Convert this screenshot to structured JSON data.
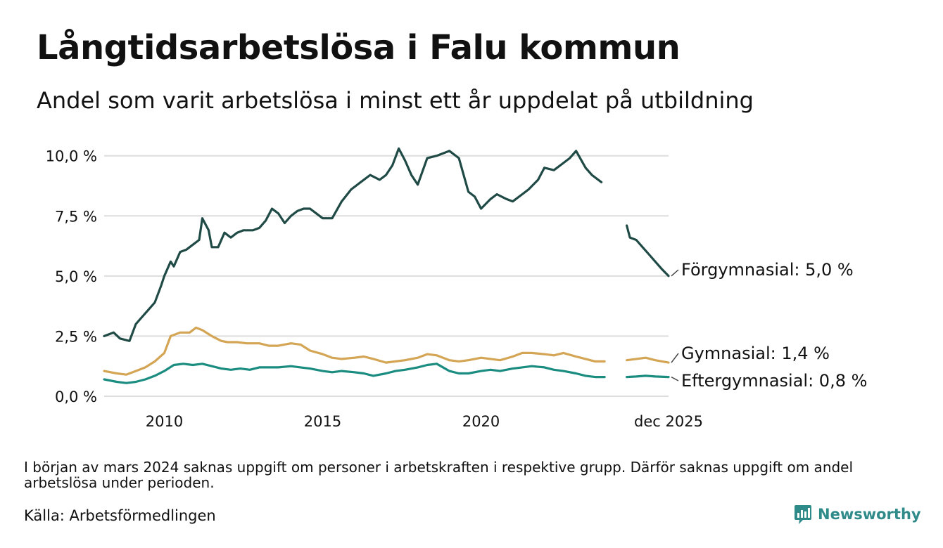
{
  "title": "Långtidsarbetslösa i Falu kommun",
  "subtitle": "Andel som varit arbetslösa i minst ett år uppdelat på utbildning",
  "note": "I början av mars 2024 saknas uppgift om personer i arbetskraften i respektive grupp. Därför saknas uppgift om andel arbetslösa under perioden.",
  "source": "Källa: Arbetsförmedlingen",
  "brand": "Newsworthy",
  "colors": {
    "forgymnasial": "#1f4a45",
    "gymnasial": "#d3a554",
    "eftergymnasial": "#1a8c80",
    "grid": "#dddddd",
    "brand": "#2f8a8a"
  },
  "chart_data": {
    "type": "line",
    "title": "Långtidsarbetslösa i Falu kommun",
    "subtitle": "Andel som varit arbetslösa i minst ett år uppdelat på utbildning",
    "xlabel": "",
    "ylabel": "",
    "xlim": [
      2008.1,
      2025.92
    ],
    "ylim": [
      0,
      10.4
    ],
    "y_ticks": [
      0,
      2.5,
      5,
      7.5,
      10
    ],
    "y_tick_labels": [
      "0,0 %",
      "2,5 %",
      "5,0 %",
      "7,5 %",
      "10,0 %"
    ],
    "x_ticks": [
      2010,
      2015,
      2020,
      2025.92
    ],
    "x_tick_labels": [
      "2010",
      "2015",
      "2020",
      "dec 2025"
    ],
    "grid": true,
    "gap": [
      2023.95,
      2024.55
    ],
    "series": [
      {
        "name": "Förgymnasial",
        "label": "Förgymnasial: 5,0 %",
        "color_key": "forgymnasial",
        "x": [
          2008.1,
          2008.4,
          2008.6,
          2008.9,
          2009.1,
          2009.3,
          2009.5,
          2009.7,
          2009.9,
          2010.0,
          2010.2,
          2010.3,
          2010.5,
          2010.7,
          2010.9,
          2011.1,
          2011.2,
          2011.4,
          2011.5,
          2011.7,
          2011.9,
          2012.1,
          2012.3,
          2012.5,
          2012.8,
          2013.0,
          2013.2,
          2013.4,
          2013.6,
          2013.8,
          2014.0,
          2014.2,
          2014.4,
          2014.6,
          2014.8,
          2015.0,
          2015.3,
          2015.6,
          2015.9,
          2016.2,
          2016.5,
          2016.8,
          2017.0,
          2017.2,
          2017.4,
          2017.6,
          2017.8,
          2018.0,
          2018.3,
          2018.6,
          2018.8,
          2019.0,
          2019.3,
          2019.6,
          2019.8,
          2020.0,
          2020.3,
          2020.5,
          2020.8,
          2021.0,
          2021.3,
          2021.5,
          2021.8,
          2022.0,
          2022.3,
          2022.5,
          2022.8,
          2023.0,
          2023.3,
          2023.5,
          2023.8,
          2024.6,
          2024.7,
          2024.9,
          2025.1,
          2025.3,
          2025.5,
          2025.7,
          2025.92
        ],
        "values": [
          2.5,
          2.65,
          2.4,
          2.3,
          3.0,
          3.3,
          3.6,
          3.9,
          4.6,
          5.0,
          5.6,
          5.4,
          6.0,
          6.1,
          6.3,
          6.5,
          7.4,
          6.9,
          6.2,
          6.2,
          6.8,
          6.6,
          6.8,
          6.9,
          6.9,
          7.0,
          7.3,
          7.8,
          7.6,
          7.2,
          7.5,
          7.7,
          7.8,
          7.8,
          7.6,
          7.4,
          7.4,
          8.1,
          8.6,
          8.9,
          9.2,
          9.0,
          9.2,
          9.6,
          10.3,
          9.8,
          9.2,
          8.8,
          9.9,
          10.0,
          10.1,
          10.2,
          9.9,
          8.5,
          8.3,
          7.8,
          8.2,
          8.4,
          8.2,
          8.1,
          8.4,
          8.6,
          9.0,
          9.5,
          9.4,
          9.6,
          9.9,
          10.2,
          9.5,
          9.2,
          8.9,
          7.1,
          6.6,
          6.5,
          6.2,
          5.9,
          5.6,
          5.3,
          5.0
        ]
      },
      {
        "name": "Gymnasial",
        "label": "Gymnasial: 1,4 %",
        "color_key": "gymnasial",
        "x": [
          2008.1,
          2008.5,
          2008.8,
          2009.1,
          2009.4,
          2009.7,
          2010.0,
          2010.2,
          2010.5,
          2010.8,
          2011.0,
          2011.2,
          2011.5,
          2011.8,
          2012.0,
          2012.3,
          2012.6,
          2013.0,
          2013.3,
          2013.6,
          2014.0,
          2014.3,
          2014.6,
          2015.0,
          2015.3,
          2015.6,
          2016.0,
          2016.3,
          2016.6,
          2017.0,
          2017.3,
          2017.6,
          2018.0,
          2018.3,
          2018.6,
          2019.0,
          2019.3,
          2019.6,
          2020.0,
          2020.3,
          2020.6,
          2021.0,
          2021.3,
          2021.6,
          2022.0,
          2022.3,
          2022.6,
          2023.0,
          2023.3,
          2023.6,
          2023.9,
          2024.6,
          2024.9,
          2025.2,
          2025.5,
          2025.92
        ],
        "values": [
          1.05,
          0.95,
          0.9,
          1.05,
          1.2,
          1.45,
          1.8,
          2.5,
          2.65,
          2.65,
          2.85,
          2.75,
          2.5,
          2.3,
          2.25,
          2.25,
          2.2,
          2.2,
          2.1,
          2.1,
          2.2,
          2.15,
          1.9,
          1.75,
          1.6,
          1.55,
          1.6,
          1.65,
          1.55,
          1.4,
          1.45,
          1.5,
          1.6,
          1.75,
          1.7,
          1.5,
          1.45,
          1.5,
          1.6,
          1.55,
          1.5,
          1.65,
          1.8,
          1.8,
          1.75,
          1.7,
          1.8,
          1.65,
          1.55,
          1.45,
          1.45,
          1.5,
          1.55,
          1.6,
          1.5,
          1.4
        ]
      },
      {
        "name": "Eftergymnasial",
        "label": "Eftergymnasial: 0,8 %",
        "color_key": "eftergymnasial",
        "x": [
          2008.1,
          2008.5,
          2008.8,
          2009.1,
          2009.4,
          2009.7,
          2010.0,
          2010.3,
          2010.6,
          2010.9,
          2011.2,
          2011.5,
          2011.8,
          2012.1,
          2012.4,
          2012.7,
          2013.0,
          2013.3,
          2013.6,
          2014.0,
          2014.3,
          2014.6,
          2015.0,
          2015.3,
          2015.6,
          2016.0,
          2016.3,
          2016.6,
          2017.0,
          2017.3,
          2017.6,
          2018.0,
          2018.3,
          2018.6,
          2019.0,
          2019.3,
          2019.6,
          2020.0,
          2020.3,
          2020.6,
          2021.0,
          2021.3,
          2021.6,
          2022.0,
          2022.3,
          2022.6,
          2023.0,
          2023.3,
          2023.6,
          2023.9,
          2024.6,
          2024.9,
          2025.2,
          2025.5,
          2025.92
        ],
        "values": [
          0.7,
          0.6,
          0.55,
          0.6,
          0.7,
          0.85,
          1.05,
          1.3,
          1.35,
          1.3,
          1.35,
          1.25,
          1.15,
          1.1,
          1.15,
          1.1,
          1.2,
          1.2,
          1.2,
          1.25,
          1.2,
          1.15,
          1.05,
          1.0,
          1.05,
          1.0,
          0.95,
          0.85,
          0.95,
          1.05,
          1.1,
          1.2,
          1.3,
          1.35,
          1.05,
          0.95,
          0.95,
          1.05,
          1.1,
          1.05,
          1.15,
          1.2,
          1.25,
          1.2,
          1.1,
          1.05,
          0.95,
          0.85,
          0.8,
          0.8,
          0.8,
          0.82,
          0.85,
          0.82,
          0.8
        ]
      }
    ]
  }
}
